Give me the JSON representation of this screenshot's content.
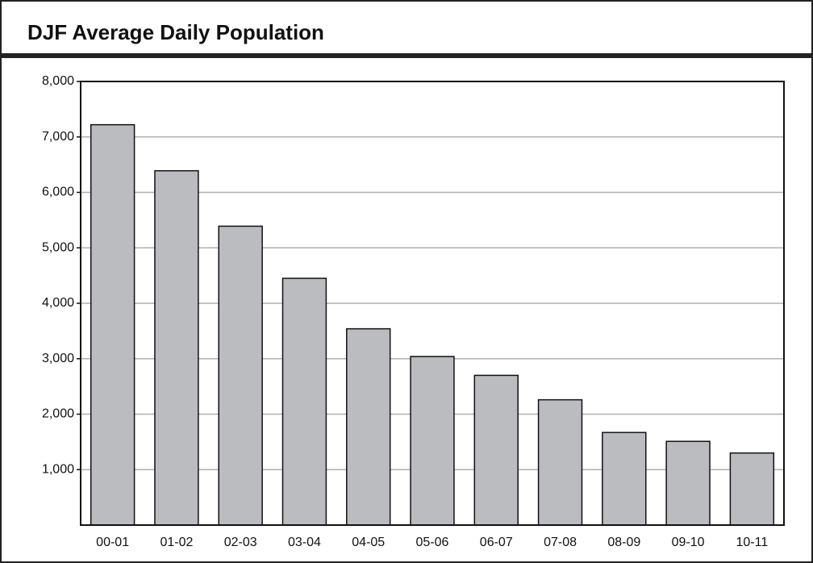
{
  "chart_data": {
    "type": "bar",
    "title": "DJF Average Daily Population",
    "categories": [
      "00-01",
      "01-02",
      "02-03",
      "03-04",
      "04-05",
      "05-06",
      "06-07",
      "07-08",
      "08-09",
      "09-10",
      "10-11"
    ],
    "values": [
      7220,
      6390,
      5390,
      4450,
      3540,
      3040,
      2700,
      2260,
      1670,
      1510,
      1300
    ],
    "color": "#bbbcc0",
    "ylim": [
      0,
      8000
    ],
    "yticks": [
      {
        "value": 1000,
        "label": "1,000"
      },
      {
        "value": 2000,
        "label": "2,000"
      },
      {
        "value": 3000,
        "label": "3,000"
      },
      {
        "value": 4000,
        "label": "4,000"
      },
      {
        "value": 5000,
        "label": "5,000"
      },
      {
        "value": 6000,
        "label": "6,000"
      },
      {
        "value": 7000,
        "label": "7,000"
      },
      {
        "value": 8000,
        "label": "8,000"
      }
    ],
    "grid": true
  }
}
